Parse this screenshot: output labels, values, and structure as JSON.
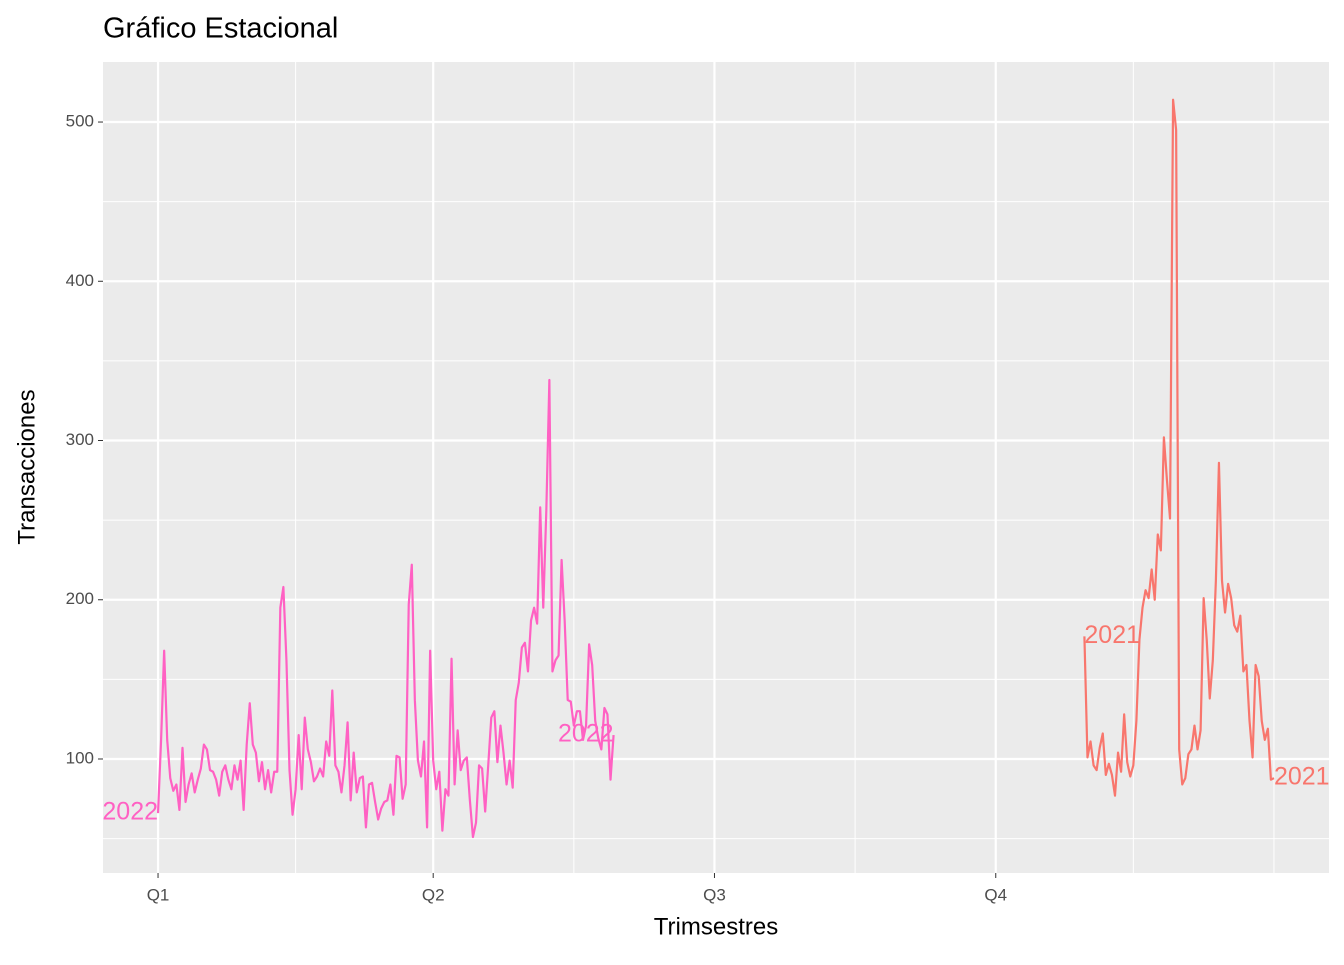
{
  "chart_data": {
    "type": "line",
    "title": "Gráfico Estacional",
    "xlabel": "Trimsestres",
    "ylabel": "Transacciones",
    "xlim": [
      -18,
      383
    ],
    "ylim": [
      28.4,
      537.7
    ],
    "xticks": [
      {
        "value": 0,
        "label": "Q1"
      },
      {
        "value": 90,
        "label": "Q2"
      },
      {
        "value": 182,
        "label": "Q3"
      },
      {
        "value": 274,
        "label": "Q4"
      }
    ],
    "xminor": [
      45,
      136,
      228,
      319,
      365
    ],
    "yticks": [
      100,
      200,
      300,
      400,
      500
    ],
    "yminor": [
      50,
      150,
      250,
      350,
      450
    ],
    "grid": true,
    "series": [
      {
        "name": "2022",
        "color": "#FF61C3",
        "x": [
          0,
          1,
          2,
          3,
          4,
          5,
          6,
          7,
          8,
          9,
          10,
          11,
          12,
          13,
          14,
          15,
          16,
          17,
          18,
          19,
          20,
          21,
          22,
          23,
          24,
          25,
          26,
          27,
          28,
          29,
          30,
          31,
          32,
          33,
          34,
          35,
          36,
          37,
          38,
          39,
          40,
          41,
          42,
          43,
          44,
          45,
          46,
          47,
          48,
          49,
          50,
          51,
          52,
          53,
          54,
          55,
          56,
          57,
          58,
          59,
          60,
          61,
          62,
          63,
          64,
          65,
          66,
          67,
          68,
          69,
          70,
          71,
          72,
          73,
          74,
          75,
          76,
          77,
          78,
          79,
          80,
          81,
          82,
          83,
          84,
          85,
          86,
          87,
          88,
          89,
          90,
          91,
          92,
          93,
          94,
          95,
          96,
          97,
          98,
          99,
          100,
          101,
          102,
          103,
          104,
          105,
          106,
          107,
          108,
          109,
          110,
          111,
          112,
          113,
          114,
          115,
          116,
          117,
          118,
          119,
          120,
          121,
          122,
          123,
          124,
          125,
          126,
          127,
          128,
          129,
          130,
          131,
          132,
          133,
          134,
          135,
          136,
          137,
          138,
          139,
          140,
          141,
          142,
          143,
          144,
          145,
          146,
          147,
          148,
          149
        ],
        "values": [
          66,
          112,
          168,
          112,
          88,
          80,
          84,
          68,
          107,
          73,
          84,
          91,
          79,
          87,
          94,
          109,
          106,
          93,
          92,
          87,
          77,
          92,
          96,
          87,
          81,
          96,
          87,
          99,
          68,
          109,
          135,
          109,
          104,
          86,
          98,
          81,
          93,
          79,
          92,
          92,
          195,
          208,
          162,
          93,
          65,
          81,
          115,
          81,
          126,
          106,
          98,
          86,
          89,
          94,
          89,
          111,
          102,
          143,
          96,
          92,
          79,
          96,
          123,
          74,
          104,
          79,
          88,
          89,
          57,
          84,
          85,
          73,
          62,
          69,
          73,
          74,
          84,
          65,
          102,
          101,
          75,
          84,
          197,
          222,
          137,
          99,
          89,
          111,
          57,
          168,
          99,
          81,
          92,
          55,
          81,
          77,
          163,
          84,
          118,
          93,
          99,
          101,
          74,
          51,
          60,
          96,
          94,
          67,
          96,
          126,
          130,
          98,
          121,
          104,
          84,
          99,
          82,
          137,
          148,
          170,
          173,
          155,
          187,
          195,
          185,
          258,
          195,
          256,
          338,
          155,
          162,
          165,
          225,
          187,
          137,
          136,
          121,
          130,
          130,
          112,
          121,
          172,
          159,
          124,
          113,
          106,
          132,
          128,
          87,
          115
        ]
      },
      {
        "name": "2021",
        "color": "#F8766D",
        "x": [
          303,
          304,
          305,
          306,
          307,
          308,
          309,
          310,
          311,
          312,
          313,
          314,
          315,
          316,
          317,
          318,
          319,
          320,
          321,
          322,
          323,
          324,
          325,
          326,
          327,
          328,
          329,
          330,
          331,
          332,
          333,
          334,
          335,
          336,
          337,
          338,
          339,
          340,
          341,
          342,
          343,
          344,
          345,
          346,
          347,
          348,
          349,
          350,
          351,
          352,
          353,
          354,
          355,
          356,
          357,
          358,
          359,
          360,
          361,
          362,
          363,
          364,
          365
        ],
        "values": [
          177,
          101,
          111,
          96,
          93,
          107,
          116,
          90,
          97,
          90,
          77,
          104,
          92,
          128,
          98,
          89,
          96,
          124,
          175,
          195,
          206,
          201,
          219,
          200,
          241,
          231,
          302,
          275,
          251,
          514,
          495,
          106,
          84,
          88,
          103,
          106,
          121,
          106,
          118,
          201,
          175,
          138,
          162,
          212,
          286,
          212,
          192,
          210,
          201,
          184,
          180,
          190,
          155,
          159,
          124,
          101,
          159,
          152,
          124,
          112,
          119,
          87,
          88
        ]
      }
    ]
  }
}
